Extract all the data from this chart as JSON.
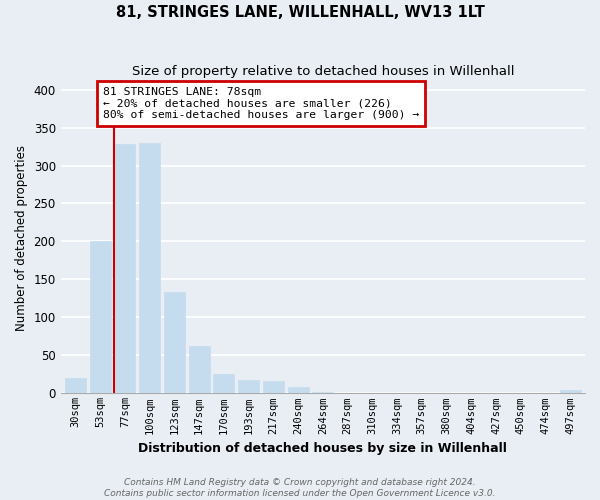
{
  "title": "81, STRINGES LANE, WILLENHALL, WV13 1LT",
  "subtitle": "Size of property relative to detached houses in Willenhall",
  "xlabel": "Distribution of detached houses by size in Willenhall",
  "ylabel": "Number of detached properties",
  "bar_labels": [
    "30sqm",
    "53sqm",
    "77sqm",
    "100sqm",
    "123sqm",
    "147sqm",
    "170sqm",
    "193sqm",
    "217sqm",
    "240sqm",
    "264sqm",
    "287sqm",
    "310sqm",
    "334sqm",
    "357sqm",
    "380sqm",
    "404sqm",
    "427sqm",
    "450sqm",
    "474sqm",
    "497sqm"
  ],
  "bar_values": [
    20,
    200,
    328,
    330,
    133,
    62,
    25,
    17,
    16,
    8,
    2,
    0,
    0,
    0,
    0,
    0,
    0,
    0,
    0,
    0,
    4
  ],
  "bar_color": "#c5dcee",
  "annotation_title": "81 STRINGES LANE: 78sqm",
  "annotation_line1": "← 20% of detached houses are smaller (226)",
  "annotation_line2": "80% of semi-detached houses are larger (900) →",
  "annotation_box_facecolor": "#ffffff",
  "annotation_border_color": "#cc0000",
  "red_line_color": "#cc0000",
  "ylim": [
    0,
    410
  ],
  "yticks": [
    0,
    50,
    100,
    150,
    200,
    250,
    300,
    350,
    400
  ],
  "footer1": "Contains HM Land Registry data © Crown copyright and database right 2024.",
  "footer2": "Contains public sector information licensed under the Open Government Licence v3.0.",
  "background_color": "#e8eef4",
  "plot_background": "#e8eef4",
  "grid_color": "#ffffff",
  "title_fontsize": 10.5,
  "subtitle_fontsize": 9.5,
  "bar_width": 0.85
}
